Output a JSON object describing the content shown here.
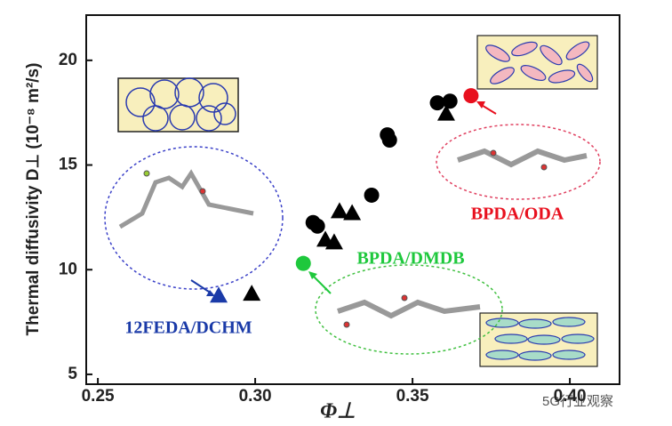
{
  "chart_data": {
    "type": "scatter",
    "x_label": "Φ⊥",
    "y_label": "Thermal diffusivity D⊥ (10⁻⁸ m²/s)",
    "xlim": [
      0.2463,
      0.4158
    ],
    "ylim": [
      4.53,
      22.16
    ],
    "xticks": [
      {
        "value": 0.25,
        "label": "0.25"
      },
      {
        "value": 0.3,
        "label": "0.30"
      },
      {
        "value": 0.35,
        "label": "0.35"
      },
      {
        "value": 0.4,
        "label": "0.40"
      }
    ],
    "yticks": [
      5,
      10,
      15,
      20
    ],
    "series": [
      {
        "color": "#000000",
        "marker": "circle",
        "x": [
          0.3184,
          0.3198,
          0.337,
          0.342,
          0.3427,
          0.3579,
          0.3619
        ],
        "values": [
          12.25,
          12.08,
          13.56,
          16.44,
          16.19,
          17.97,
          18.05
        ]
      },
      {
        "color": "#000000",
        "marker": "triangle",
        "x": [
          0.3268,
          0.3308,
          0.3223,
          0.3251,
          0.3607,
          0.2989
        ],
        "values": [
          12.8,
          12.71,
          11.44,
          11.31,
          17.46,
          8.86
        ]
      },
      {
        "name": "BPDA/ODA",
        "color": "#e8101e",
        "marker": "circle",
        "x": [
          0.3686
        ],
        "values": [
          18.31
        ]
      },
      {
        "name": "BPDA/DMDB",
        "color": "#1ec83c",
        "marker": "circle",
        "x": [
          0.3153
        ],
        "values": [
          10.3
        ]
      },
      {
        "name": "12FEDA/DCHM",
        "color": "#1a3aa8",
        "marker": "triangle",
        "x": [
          0.2884
        ],
        "values": [
          8.77
        ]
      }
    ],
    "watermark": "5G行业观察"
  }
}
